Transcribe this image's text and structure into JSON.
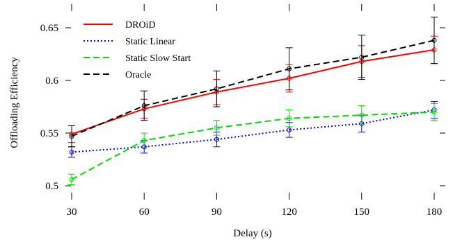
{
  "chart_data": {
    "type": "line",
    "xlabel": "Delay (s)",
    "ylabel": "Offloading Efficiency",
    "x": [
      30,
      60,
      90,
      120,
      150,
      180
    ],
    "xlim": [
      30,
      180
    ],
    "ylim": [
      0.495,
      0.665
    ],
    "xticks": [
      "30",
      "60",
      "90",
      "120",
      "150",
      "180"
    ],
    "yticks": [
      {
        "value": 0.5,
        "label": "0.5"
      },
      {
        "value": 0.55,
        "label": "0.55"
      },
      {
        "value": 0.6,
        "label": "0.6"
      },
      {
        "value": 0.65,
        "label": "0.65"
      }
    ],
    "legend_position": "top-left",
    "series": [
      {
        "name": "DROiD",
        "color": "#ff0000",
        "dash": "solid",
        "values": [
          0.549,
          0.573,
          0.589,
          0.602,
          0.618,
          0.629
        ],
        "err": [
          0.008,
          0.009,
          0.012,
          0.013,
          0.015,
          0.013
        ]
      },
      {
        "name": "Static Linear",
        "color": "#0000ff",
        "dash": "dotted",
        "values": [
          0.532,
          0.537,
          0.544,
          0.553,
          0.559,
          0.572
        ],
        "err": [
          0.005,
          0.006,
          0.007,
          0.007,
          0.008,
          0.008
        ]
      },
      {
        "name": "Static Slow Start",
        "color": "#00dd00",
        "dash": "dashed",
        "values": [
          0.506,
          0.543,
          0.555,
          0.564,
          0.567,
          0.57
        ],
        "err": [
          0.005,
          0.007,
          0.007,
          0.008,
          0.009,
          0.008
        ]
      },
      {
        "name": "Oracle",
        "color": "#000000",
        "dash": "dashed",
        "values": [
          0.547,
          0.576,
          0.592,
          0.611,
          0.622,
          0.638
        ],
        "err": [
          0.01,
          0.014,
          0.017,
          0.02,
          0.021,
          0.022
        ]
      }
    ]
  }
}
